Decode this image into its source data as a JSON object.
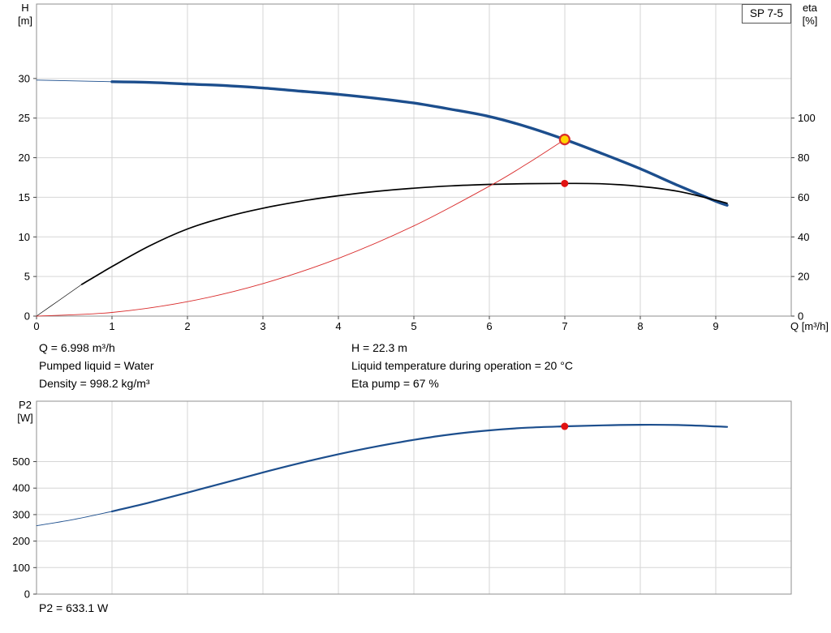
{
  "title": "SP 7-5",
  "annotations": {
    "rows": [
      {
        "left": "Q = 6.998 m³/h",
        "right": "H = 22.3 m"
      },
      {
        "left": "Pumped liquid = Water",
        "right": "Liquid temperature during operation = 20 °C"
      },
      {
        "left": "Density = 998.2 kg/m³",
        "right": "Eta pump = 67 %"
      }
    ],
    "p2": "P2 = 633.1 W"
  },
  "chart_data": [
    {
      "type": "line",
      "title": "SP 7-5",
      "xlabel": "Q [m³/h]",
      "ylabel": "H [m]",
      "y2label": "eta [%]",
      "xlim": [
        0,
        10
      ],
      "ylim": [
        0,
        39.4
      ],
      "y2lim": [
        0,
        157.6
      ],
      "x_ticks": [
        0,
        1,
        2,
        3,
        4,
        5,
        6,
        7,
        8,
        9
      ],
      "y_ticks": [
        0,
        5,
        10,
        15,
        20,
        25,
        30
      ],
      "y2_ticks": [
        0,
        20,
        40,
        60,
        80,
        100
      ],
      "grid": true,
      "series": [
        {
          "name": "h-curve",
          "label": "Head H(Q)",
          "axis": "left",
          "color": "#1c4e8d",
          "width": 3.4,
          "lead_until": 0.6,
          "lead_width": 0.9,
          "points": [
            [
              0,
              29.8
            ],
            [
              0.5,
              29.7
            ],
            [
              1,
              29.6
            ],
            [
              1.5,
              29.5
            ],
            [
              2,
              29.3
            ],
            [
              2.5,
              29.1
            ],
            [
              3,
              28.8
            ],
            [
              3.5,
              28.4
            ],
            [
              4,
              28.0
            ],
            [
              4.5,
              27.5
            ],
            [
              5,
              26.9
            ],
            [
              5.5,
              26.1
            ],
            [
              6,
              25.2
            ],
            [
              6.5,
              23.9
            ],
            [
              7,
              22.3
            ],
            [
              7.5,
              20.5
            ],
            [
              8,
              18.6
            ],
            [
              8.5,
              16.5
            ],
            [
              9,
              14.5
            ],
            [
              9.15,
              14.0
            ]
          ]
        },
        {
          "name": "eta-curve",
          "label": "Efficiency eta(Q)",
          "axis": "right",
          "color": "#000000",
          "width": 1.7,
          "lead_until": 0.6,
          "lead_width": 0.7,
          "points": [
            [
              0,
              0
            ],
            [
              0.3,
              8
            ],
            [
              0.6,
              16
            ],
            [
              1,
              25
            ],
            [
              1.5,
              35.5
            ],
            [
              2,
              44
            ],
            [
              2.5,
              50
            ],
            [
              3,
              54.5
            ],
            [
              3.5,
              58
            ],
            [
              4,
              60.8
            ],
            [
              4.5,
              63
            ],
            [
              5,
              64.6
            ],
            [
              5.5,
              65.8
            ],
            [
              6,
              66.5
            ],
            [
              6.5,
              66.9
            ],
            [
              7,
              67
            ],
            [
              7.5,
              66.8
            ],
            [
              8,
              65.5
            ],
            [
              8.5,
              63
            ],
            [
              9,
              58.5
            ],
            [
              9.15,
              57
            ]
          ]
        },
        {
          "name": "system-curve",
          "label": "System curve to duty point",
          "axis": "left",
          "color": "#d92b2b",
          "width": 0.9,
          "points": [
            [
              0,
              0
            ],
            [
              1,
              0.46
            ],
            [
              2,
              1.82
            ],
            [
              3,
              4.1
            ],
            [
              4,
              7.29
            ],
            [
              5,
              11.39
            ],
            [
              6,
              16.4
            ],
            [
              6.5,
              19.24
            ],
            [
              6.998,
              22.3
            ]
          ]
        }
      ],
      "markers": [
        {
          "name": "duty-point",
          "axis": "left",
          "x": 6.998,
          "y": 22.3,
          "r": 6,
          "fill": "#ffd500",
          "stroke": "#d92b2b",
          "stroke_width": 2.2
        },
        {
          "name": "eta-point",
          "axis": "right",
          "x": 6.998,
          "y": 67,
          "r": 4.5,
          "fill": "#e11212"
        }
      ]
    },
    {
      "type": "line",
      "title": "P2 power curve",
      "xlabel": "",
      "ylabel": "P2 [W]",
      "xlim": [
        0,
        10
      ],
      "ylim": [
        0,
        728
      ],
      "x_ticks": [
        0,
        1,
        2,
        3,
        4,
        5,
        6,
        7,
        8,
        9
      ],
      "x_tick_labels": false,
      "y_ticks": [
        0,
        100,
        200,
        300,
        400,
        500
      ],
      "grid": true,
      "series": [
        {
          "name": "p2-curve",
          "label": "Shaft power P2(Q)",
          "axis": "left",
          "color": "#1c4e8d",
          "width": 2.2,
          "lead_until": 0.75,
          "lead_width": 0.9,
          "points": [
            [
              0,
              258
            ],
            [
              0.5,
              282
            ],
            [
              1,
              312
            ],
            [
              1.5,
              346
            ],
            [
              2,
              383
            ],
            [
              2.5,
              421
            ],
            [
              3,
              459
            ],
            [
              3.5,
              495
            ],
            [
              4,
              528
            ],
            [
              4.5,
              557
            ],
            [
              5,
              582
            ],
            [
              5.5,
              603
            ],
            [
              6,
              618
            ],
            [
              6.5,
              628
            ],
            [
              7,
              633.1
            ],
            [
              7.5,
              637
            ],
            [
              8,
              639
            ],
            [
              8.5,
              638
            ],
            [
              9,
              633
            ],
            [
              9.15,
              631
            ]
          ]
        }
      ],
      "markers": [
        {
          "name": "p2-point",
          "axis": "left",
          "x": 6.998,
          "y": 633.1,
          "r": 4.5,
          "fill": "#e11212"
        }
      ]
    }
  ]
}
